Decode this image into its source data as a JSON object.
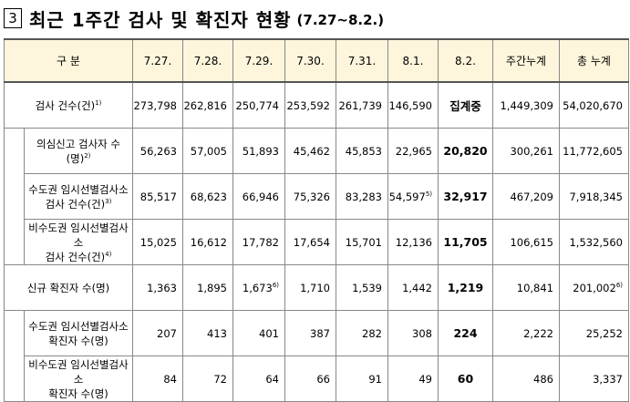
{
  "header": {
    "section_number": "3",
    "title": "최근 1주간 검사 및 확진자 현황",
    "subtitle": "(7.27~8.2.)"
  },
  "table": {
    "columns": [
      "구 분",
      "7.27.",
      "7.28.",
      "7.29.",
      "7.30.",
      "7.31.",
      "8.1.",
      "8.2.",
      "주간누계",
      "총 누계"
    ],
    "groups": [
      {
        "label": "검사 건수(건)",
        "note": "1)",
        "cells": [
          "273,798",
          "262,816",
          "250,774",
          "253,592",
          "261,739",
          "146,590",
          "집계중",
          "1,449,309",
          "54,020,670"
        ],
        "children": [
          {
            "label": "의심신고 검사자 수(명)",
            "note": "2)",
            "cells": [
              "56,263",
              "57,005",
              "51,893",
              "45,462",
              "45,853",
              "22,965",
              "20,820",
              "300,261",
              "11,772,605"
            ]
          },
          {
            "label": "수도권 임시선별검사소\n검사 건수(건)",
            "note": "3)",
            "cells": [
              "85,517",
              "68,623",
              "66,946",
              "75,326",
              "83,283",
              {
                "text": "54,597",
                "note": "5)"
              },
              "32,917",
              "467,209",
              "7,918,345"
            ]
          },
          {
            "label": "비수도권 임시선별검사소\n검사 건수(건)",
            "note": "4)",
            "cells": [
              "15,025",
              "16,612",
              "17,782",
              "17,654",
              "15,701",
              "12,136",
              "11,705",
              "106,615",
              "1,532,560"
            ]
          }
        ]
      },
      {
        "label": "신규 확진자 수(명)",
        "cells": [
          "1,363",
          "1,895",
          {
            "text": "1,673",
            "note": "6)"
          },
          "1,710",
          "1,539",
          "1,442",
          "1,219",
          "10,841",
          {
            "text": "201,002",
            "note": "6)"
          }
        ],
        "children": [
          {
            "label": "수도권 임시선별검사소\n확진자 수(명)",
            "cells": [
              "207",
              "413",
              "401",
              "387",
              "282",
              "308",
              "224",
              "2,222",
              "25,252"
            ]
          },
          {
            "label": "비수도권 임시선별검사소\n확진자 수(명)",
            "cells": [
              "84",
              "72",
              "64",
              "66",
              "91",
              "49",
              "60",
              "486",
              "3,337"
            ]
          }
        ]
      }
    ]
  }
}
